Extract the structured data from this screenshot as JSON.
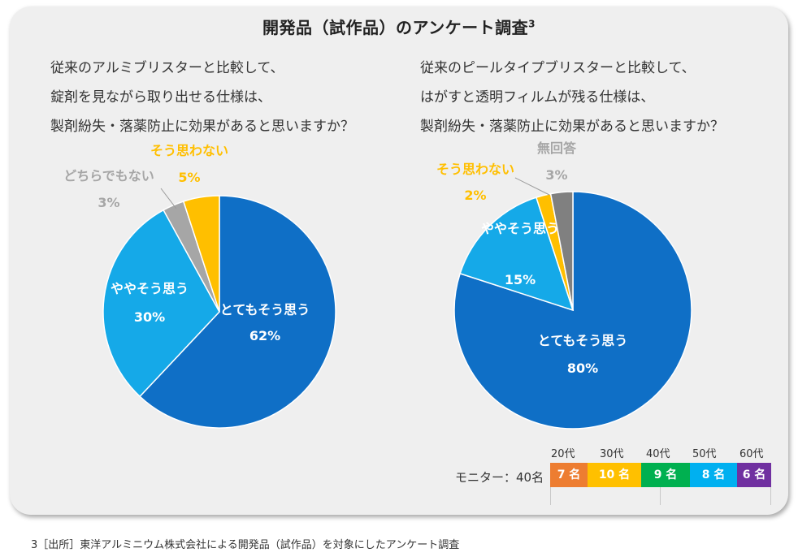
{
  "title": "開発品（試作品）のアンケート調査",
  "title_sup": "3",
  "chart_data": [
    {
      "type": "pie",
      "question_lines": [
        "従来のアルミブリスターと比較して、",
        "錠剤を見ながら取り出せる仕様は、",
        "製剤紛失・落薬防止に効果があると思いますか？"
      ],
      "slices": [
        {
          "name": "とてもそう思う",
          "value": 62,
          "label": "62%",
          "color": "#0f6fc6"
        },
        {
          "name": "ややそう思う",
          "value": 30,
          "label": "30%",
          "color": "#15a9e8"
        },
        {
          "name": "どちらでもない",
          "value": 3,
          "label": "3%",
          "color": "#a6a6a6"
        },
        {
          "name": "そう思わない",
          "value": 5,
          "label": "5%",
          "color": "#ffbf00"
        }
      ]
    },
    {
      "type": "pie",
      "question_lines": [
        "従来のピールタイプブリスターと比較して、",
        "はがすと透明フィルムが残る仕様は、",
        "製剤紛失・落薬防止に効果があると思いますか？"
      ],
      "slices": [
        {
          "name": "とてもそう思う",
          "value": 80,
          "label": "80%",
          "color": "#0f6fc6"
        },
        {
          "name": "ややそう思う",
          "value": 15,
          "label": "15%",
          "color": "#15a9e8"
        },
        {
          "name": "そう思わない",
          "value": 2,
          "label": "2%",
          "color": "#ffbf00"
        },
        {
          "name": "無回答",
          "value": 3,
          "label": "3%",
          "color": "#808080"
        }
      ]
    }
  ],
  "monitor": {
    "label": "モニター：40名",
    "groups": [
      {
        "age": "20代",
        "count": "7 名",
        "color": "#ed7d31"
      },
      {
        "age": "30代",
        "count": "10 名",
        "color": "#ffc000"
      },
      {
        "age": "40代",
        "count": "9 名",
        "color": "#00b050"
      },
      {
        "age": "50代",
        "count": "8 名",
        "color": "#00b0f0"
      },
      {
        "age": "60代",
        "count": "6 名",
        "color": "#7030a0"
      }
    ]
  },
  "footnote": "3［出所］東洋アルミニウム株式会社による開発品（試作品）を対象にしたアンケート調査"
}
